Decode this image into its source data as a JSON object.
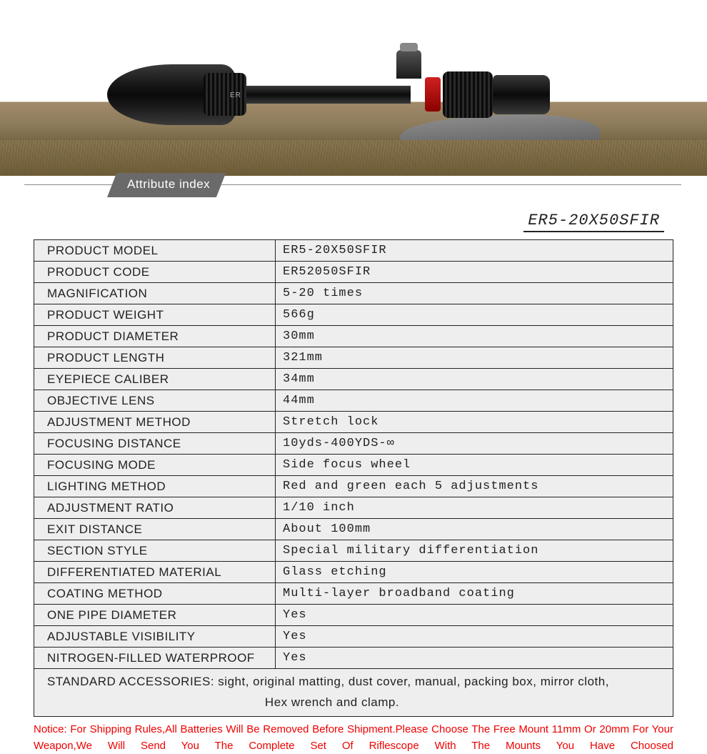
{
  "hero": {
    "scope_label": "ER"
  },
  "badge": {
    "label": "Attribute index"
  },
  "model_title": "ER5-20X50SFIR",
  "specs": {
    "rows": [
      {
        "label": "PRODUCT MODEL",
        "value": "ER5-20X50SFIR"
      },
      {
        "label": "PRODUCT CODE",
        "value": "ER52050SFIR"
      },
      {
        "label": "MAGNIFICATION",
        "value": "5-20 times"
      },
      {
        "label": "PRODUCT WEIGHT",
        "value": "566g"
      },
      {
        "label": "PRODUCT DIAMETER",
        "value": "30mm"
      },
      {
        "label": "PRODUCT LENGTH",
        "value": "321mm"
      },
      {
        "label": "EYEPIECE CALIBER",
        "value": "34mm"
      },
      {
        "label": "OBJECTIVE LENS",
        "value": "44mm"
      },
      {
        "label": "ADJUSTMENT METHOD",
        "value": "Stretch lock"
      },
      {
        "label": "FOCUSING DISTANCE",
        "value": "10yds-400YDS-∞"
      },
      {
        "label": "FOCUSING MODE",
        "value": "Side focus wheel"
      },
      {
        "label": "LIGHTING METHOD",
        "value": "Red and green each 5 adjustments"
      },
      {
        "label": "ADJUSTMENT RATIO",
        "value": "1/10 inch"
      },
      {
        "label": "EXIT DISTANCE",
        "value": "About 100mm"
      },
      {
        "label": "SECTION STYLE",
        "value": "Special military differentiation"
      },
      {
        "label": "DIFFERENTIATED MATERIAL",
        "value": "Glass etching"
      },
      {
        "label": "COATING METHOD",
        "value": "Multi-layer broadband coating"
      },
      {
        "label": "ONE PIPE DIAMETER",
        "value": "Yes"
      },
      {
        "label": "ADJUSTABLE VISIBILITY",
        "value": "Yes"
      },
      {
        "label": "NITROGEN-FILLED WATERPROOF",
        "value": "Yes"
      }
    ],
    "accessories": {
      "label": "STANDARD ACCESSORIES:",
      "line1": "sight, original matting, dust cover, manual, packing box, mirror cloth,",
      "line2": "Hex wrench and clamp."
    }
  },
  "notice": "Notice: For Shipping Rules,All Batteries Will Be Removed Before Shipment.Please Choose The Free Mount 11mm Or 20mm For Your Weapon,We Will Send You The Complete Set Of Riflescope With The Mounts You Have Choosed",
  "colors": {
    "row_bg": "#eeeeee",
    "border": "#222222",
    "notice": "#ee0000",
    "badge_bg": "#6a6a6a"
  }
}
